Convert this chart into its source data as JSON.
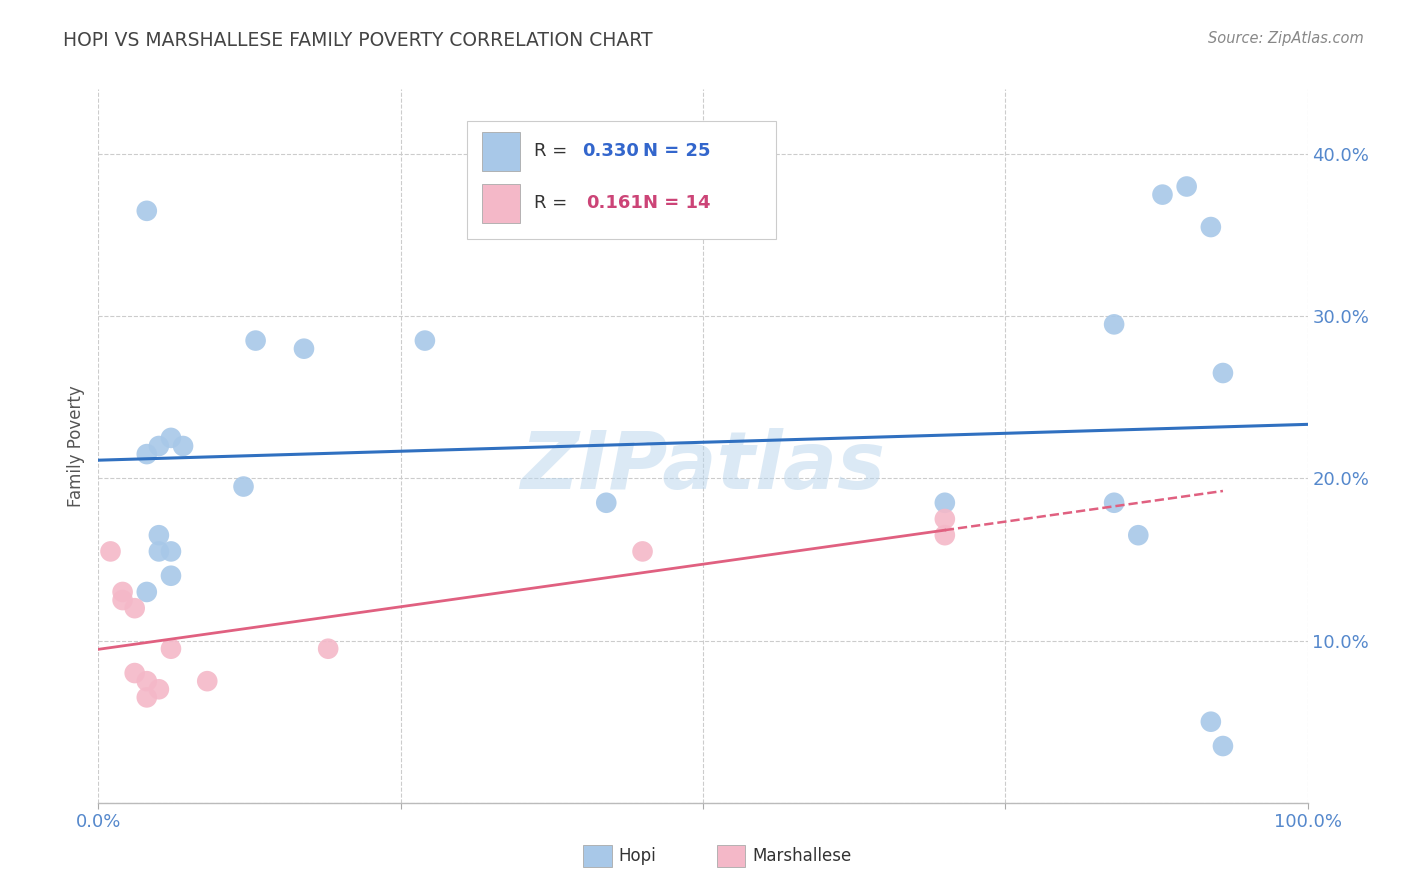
{
  "title": "HOPI VS MARSHALLESE FAMILY POVERTY CORRELATION CHART",
  "source": "Source: ZipAtlas.com",
  "ylabel": "Family Poverty",
  "xlim": [
    0,
    1.0
  ],
  "ylim": [
    0,
    0.44
  ],
  "xticks": [
    0.0,
    0.25,
    0.5,
    0.75,
    1.0
  ],
  "yticks": [
    0.0,
    0.1,
    0.2,
    0.3,
    0.4
  ],
  "hopi_x": [
    0.04,
    0.13,
    0.17,
    0.27,
    0.05,
    0.06,
    0.07,
    0.05,
    0.06,
    0.05,
    0.06,
    0.04,
    0.04,
    0.12,
    0.42,
    0.7,
    0.84,
    0.84,
    0.88,
    0.9,
    0.92,
    0.93,
    0.86,
    0.92,
    0.93
  ],
  "hopi_y": [
    0.365,
    0.285,
    0.28,
    0.285,
    0.22,
    0.225,
    0.22,
    0.165,
    0.155,
    0.155,
    0.14,
    0.13,
    0.215,
    0.195,
    0.185,
    0.185,
    0.295,
    0.185,
    0.375,
    0.38,
    0.355,
    0.265,
    0.165,
    0.05,
    0.035
  ],
  "marshallese_x": [
    0.01,
    0.02,
    0.02,
    0.03,
    0.03,
    0.04,
    0.04,
    0.05,
    0.06,
    0.09,
    0.19,
    0.45,
    0.7,
    0.7
  ],
  "marshallese_y": [
    0.155,
    0.13,
    0.125,
    0.12,
    0.08,
    0.075,
    0.065,
    0.07,
    0.095,
    0.075,
    0.095,
    0.155,
    0.175,
    0.165
  ],
  "hopi_color": "#a8c8e8",
  "marshallese_color": "#f4b8c8",
  "hopi_line_color": "#3070c0",
  "marshallese_line_color": "#e06080",
  "hopi_R": "0.330",
  "hopi_N": "25",
  "marshallese_R": "0.161",
  "marshallese_N": "14",
  "background_color": "#ffffff",
  "grid_color": "#cccccc",
  "watermark": "ZIPatlas",
  "title_color": "#444444",
  "axis_color": "#5588cc",
  "legend_text_color": "#333333",
  "legend_value_color": "#3366cc",
  "legend_marsh_color": "#cc4477"
}
